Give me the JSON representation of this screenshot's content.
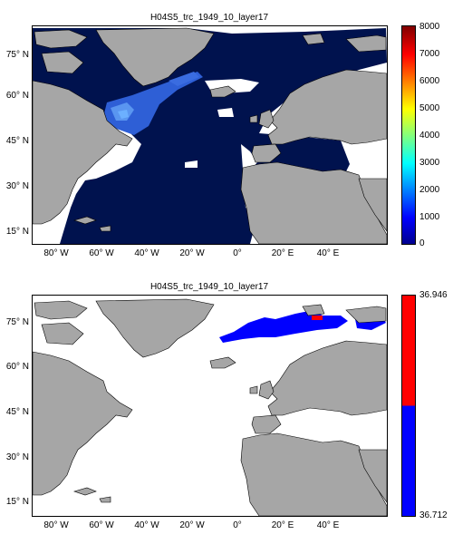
{
  "panels": [
    {
      "title": "H04S5_trc_1949_10_layer17",
      "lat_ticks": [
        "15° N",
        "30° N",
        "45° N",
        "60° N",
        "75° N"
      ],
      "lon_ticks": [
        "80° W",
        "60° W",
        "40° W",
        "20° W",
        "0°",
        "20° E",
        "40° E"
      ],
      "colorbar": {
        "type": "continuous",
        "tick_labels": [
          "0",
          "1000",
          "2000",
          "3000",
          "4000",
          "5000",
          "6000",
          "7000",
          "8000"
        ],
        "range": [
          0,
          8000
        ],
        "colormap": "jet"
      }
    },
    {
      "title": "H04S5_trc_1949_10_layer17",
      "lat_ticks": [
        "15° N",
        "30° N",
        "45° N",
        "60° N",
        "75° N"
      ],
      "lon_ticks": [
        "80° W",
        "60° W",
        "40° W",
        "20° W",
        "0°",
        "20° E",
        "40° E"
      ],
      "colorbar": {
        "type": "two-class",
        "max_label": "36.946",
        "min_label": "36.712",
        "colors": [
          "#0000ff",
          "#ff0000"
        ]
      }
    }
  ],
  "colors": {
    "land": "#a6a6a6",
    "ocean_deep": "#00124e",
    "ocean_high": "#3f78e6",
    "blue": "#0000ff",
    "red": "#ff0000"
  }
}
